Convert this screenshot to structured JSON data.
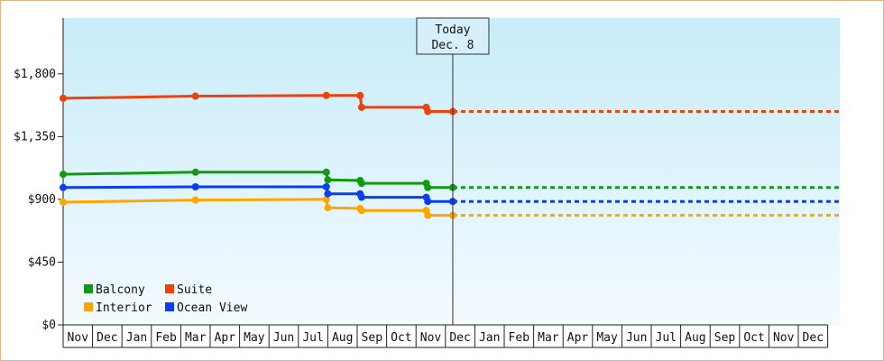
{
  "chart_data": {
    "type": "line",
    "step": true,
    "currency": "$",
    "ylim": [
      0,
      2200
    ],
    "yticks": [
      {
        "value": 0,
        "label": "$0"
      },
      {
        "value": 450,
        "label": "$450"
      },
      {
        "value": 900,
        "label": "$900"
      },
      {
        "value": 1350,
        "label": "$1,350"
      },
      {
        "value": 1800,
        "label": "$1,800"
      }
    ],
    "months": [
      "Nov",
      "Dec",
      "Jan",
      "Feb",
      "Mar",
      "Apr",
      "May",
      "Jun",
      "Jul",
      "Aug",
      "Sep",
      "Oct",
      "Nov",
      "Dec",
      "Jan",
      "Feb",
      "Mar",
      "Apr",
      "May",
      "Jun",
      "Jul",
      "Aug",
      "Sep",
      "Oct",
      "Nov",
      "Dec"
    ],
    "today": {
      "title": "Today",
      "date": "Dec. 8",
      "x": 13.25
    },
    "projection_end_x": 26.4,
    "colors": {
      "background_top": "#c8ecf9",
      "background_bottom": "#f3fbfe"
    },
    "series": [
      {
        "name": "Balcony",
        "color": "#129912",
        "points": [
          [
            0,
            1080
          ],
          [
            4.5,
            1095
          ],
          [
            8.95,
            1095
          ],
          [
            9,
            1040
          ],
          [
            10.1,
            1035
          ],
          [
            10.15,
            1015
          ],
          [
            12.35,
            1015
          ],
          [
            12.4,
            985
          ],
          [
            13.25,
            985
          ]
        ],
        "projected": 985
      },
      {
        "name": "Suite",
        "color": "#ee4208",
        "points": [
          [
            0,
            1625
          ],
          [
            4.5,
            1640
          ],
          [
            8.95,
            1645
          ],
          [
            10.1,
            1645
          ],
          [
            10.15,
            1560
          ],
          [
            12.35,
            1560
          ],
          [
            12.4,
            1530
          ],
          [
            13.25,
            1530
          ]
        ],
        "projected": 1530
      },
      {
        "name": "Interior",
        "color": "#ffa500",
        "points": [
          [
            0,
            880
          ],
          [
            4.5,
            895
          ],
          [
            8.95,
            900
          ],
          [
            9,
            840
          ],
          [
            10.1,
            835
          ],
          [
            10.15,
            820
          ],
          [
            12.35,
            820
          ],
          [
            12.4,
            785
          ],
          [
            13.25,
            785
          ]
        ],
        "projected": 785
      },
      {
        "name": "Ocean View",
        "color": "#0b3eee",
        "points": [
          [
            0,
            985
          ],
          [
            4.5,
            990
          ],
          [
            8.95,
            990
          ],
          [
            9,
            940
          ],
          [
            10.1,
            940
          ],
          [
            10.15,
            915
          ],
          [
            12.35,
            915
          ],
          [
            12.4,
            885
          ],
          [
            13.25,
            885
          ]
        ],
        "projected": 885
      }
    ],
    "legend_placement": "bottom-left"
  }
}
